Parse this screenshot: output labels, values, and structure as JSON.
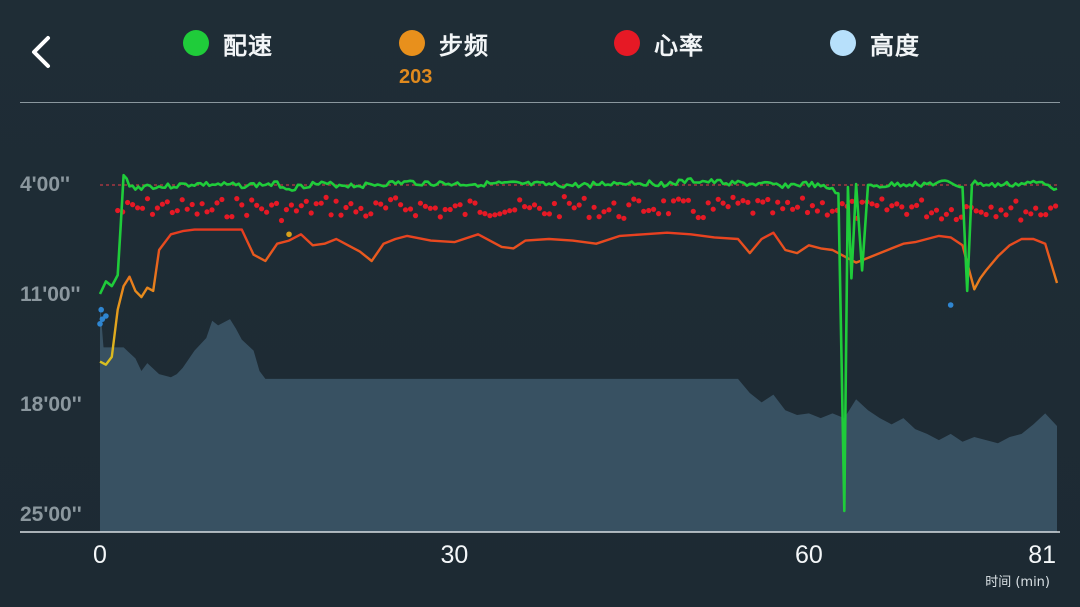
{
  "header": {
    "back_icon": "chevron-left-icon",
    "legend": [
      {
        "label": "配速",
        "color": "#1fcc3a"
      },
      {
        "label": "步频",
        "color": "#e8901c"
      },
      {
        "label": "心率",
        "color": "#e61925"
      },
      {
        "label": "高度",
        "color": "#b7e0fb"
      }
    ],
    "cadence_readout": "203"
  },
  "chart_data": {
    "type": "line",
    "title": "",
    "xlabel": "时间 (min)",
    "xlim": [
      0,
      81
    ],
    "x_ticks": [
      "0",
      "30",
      "60",
      "81"
    ],
    "y_ticks": [
      "4'00''",
      "11'00''",
      "18'00''",
      "25'00''"
    ],
    "ylim_pace_min": [
      4,
      25
    ],
    "reference_pace": "4'00''",
    "series": [
      {
        "name": "配速",
        "color": "#1fcc3a",
        "x": [
          0,
          0.5,
          1,
          1.5,
          2,
          2.5,
          3,
          4,
          5,
          8,
          12,
          15,
          16,
          18,
          22,
          26,
          30,
          35,
          40,
          45,
          48,
          50,
          55,
          58,
          60,
          61,
          62,
          62.5,
          63,
          63.3,
          63.6,
          64,
          64.5,
          65,
          68,
          70,
          72,
          73,
          73.4,
          73.8,
          74.3,
          75,
          78,
          80,
          81
        ],
        "values": [
          11,
          10.2,
          10.5,
          9.8,
          3.5,
          4.0,
          4.3,
          4.1,
          4.2,
          4.0,
          4.1,
          4.0,
          4.3,
          4.0,
          4.1,
          3.9,
          4.0,
          4.0,
          4.1,
          3.9,
          4.0,
          3.8,
          4.0,
          4.1,
          4.0,
          4.2,
          4.3,
          4.6,
          24.8,
          4.2,
          10.0,
          4.0,
          9.5,
          4.2,
          4.0,
          4.0,
          3.9,
          4.2,
          10.8,
          4.0,
          3.9,
          4.1,
          4.0,
          3.9,
          4.3
        ]
      },
      {
        "name": "步频",
        "color": "#e8901c",
        "x": [
          0,
          0.5,
          1,
          1.5,
          2,
          2.5,
          3,
          3.5,
          4,
          4.5,
          5,
          6,
          7,
          8,
          10,
          12,
          13,
          14,
          15,
          16,
          17,
          18,
          19,
          20,
          21,
          22,
          23,
          24,
          25,
          26,
          28,
          30,
          32,
          34,
          35,
          36,
          38,
          40,
          42,
          44,
          46,
          48,
          50,
          52,
          54,
          55,
          56,
          57,
          58,
          59,
          60,
          61,
          62,
          63,
          64,
          65,
          66,
          67,
          68,
          69,
          70,
          71,
          72,
          73,
          74,
          74.5,
          75,
          76,
          77,
          78,
          79,
          80,
          81
        ],
        "values": [
          15.3,
          15.5,
          15.0,
          12.0,
          10.5,
          9.9,
          10.8,
          11.2,
          10.6,
          10.8,
          8.2,
          7.2,
          7.0,
          6.9,
          6.9,
          6.9,
          8.5,
          8.9,
          7.8,
          7.6,
          7.2,
          7.9,
          7.8,
          7.5,
          7.9,
          8.3,
          8.9,
          7.8,
          7.5,
          7.3,
          7.6,
          7.7,
          7.2,
          8.0,
          8.1,
          7.6,
          7.5,
          7.6,
          7.8,
          7.3,
          7.2,
          7.1,
          7.2,
          7.4,
          7.5,
          8.4,
          7.5,
          7.1,
          8.2,
          8.4,
          7.9,
          8.1,
          8.2,
          8.6,
          9.0,
          8.7,
          8.4,
          8.1,
          7.8,
          7.7,
          7.5,
          7.3,
          7.4,
          7.9,
          10.7,
          10.0,
          9.5,
          8.6,
          7.9,
          7.5,
          7.5,
          7.8,
          10.3
        ],
        "highlight_value": 203
      },
      {
        "name": "心率",
        "color": "#e61925",
        "style": "dots",
        "x_range": [
          1.5,
          81
        ],
        "band_pace_min": [
          4.9,
          6.2
        ],
        "outliers": [
          {
            "x": 0.2,
            "value": 12.6,
            "color": "#2f86d1"
          },
          {
            "x": 0.5,
            "value": 12.4,
            "color": "#2f86d1"
          },
          {
            "x": 0.1,
            "value": 12.0,
            "color": "#2f86d1"
          },
          {
            "x": 0.0,
            "value": 12.9,
            "color": "#2f86d1"
          },
          {
            "x": 16,
            "value": 7.2,
            "color": "#d9a11a"
          },
          {
            "x": 72,
            "value": 11.7,
            "color": "#2f86d1"
          }
        ]
      },
      {
        "name": "高度",
        "color": "#b7e0fb",
        "fill": "#3a5365",
        "x": [
          0,
          0.3,
          2,
          3,
          3.5,
          4,
          5,
          6,
          6.5,
          7,
          8,
          9,
          9.5,
          10,
          11,
          11.5,
          12,
          13,
          13.5,
          14,
          16,
          18,
          20,
          22,
          24,
          26,
          28,
          30,
          32,
          34,
          36,
          38,
          40,
          42,
          44,
          46,
          48,
          50,
          52,
          54,
          55,
          56,
          57,
          58,
          59,
          60,
          61,
          62,
          63,
          64,
          65,
          66,
          67,
          68,
          69,
          70,
          71,
          72,
          73,
          74,
          75,
          76,
          77,
          78,
          79,
          80,
          81
        ],
        "values": [
          11.6,
          14.4,
          14.4,
          15.1,
          15.9,
          15.4,
          16.1,
          16.3,
          16.1,
          15.7,
          14.6,
          13.8,
          12.7,
          13.0,
          12.6,
          13.2,
          13.9,
          14.6,
          15.9,
          16.4,
          16.4,
          16.4,
          16.4,
          16.4,
          16.4,
          16.4,
          16.4,
          16.4,
          16.4,
          16.4,
          16.4,
          16.4,
          16.4,
          16.4,
          16.4,
          16.4,
          16.4,
          16.4,
          16.4,
          16.4,
          17.3,
          17.9,
          17.4,
          18.4,
          18.7,
          18.6,
          18.9,
          18.6,
          18.9,
          17.7,
          18.4,
          18.9,
          19.3,
          18.9,
          19.6,
          19.9,
          20.3,
          19.9,
          20.4,
          20.1,
          20.3,
          20.5,
          20.1,
          19.9,
          19.3,
          18.6,
          19.4
        ]
      }
    ]
  }
}
